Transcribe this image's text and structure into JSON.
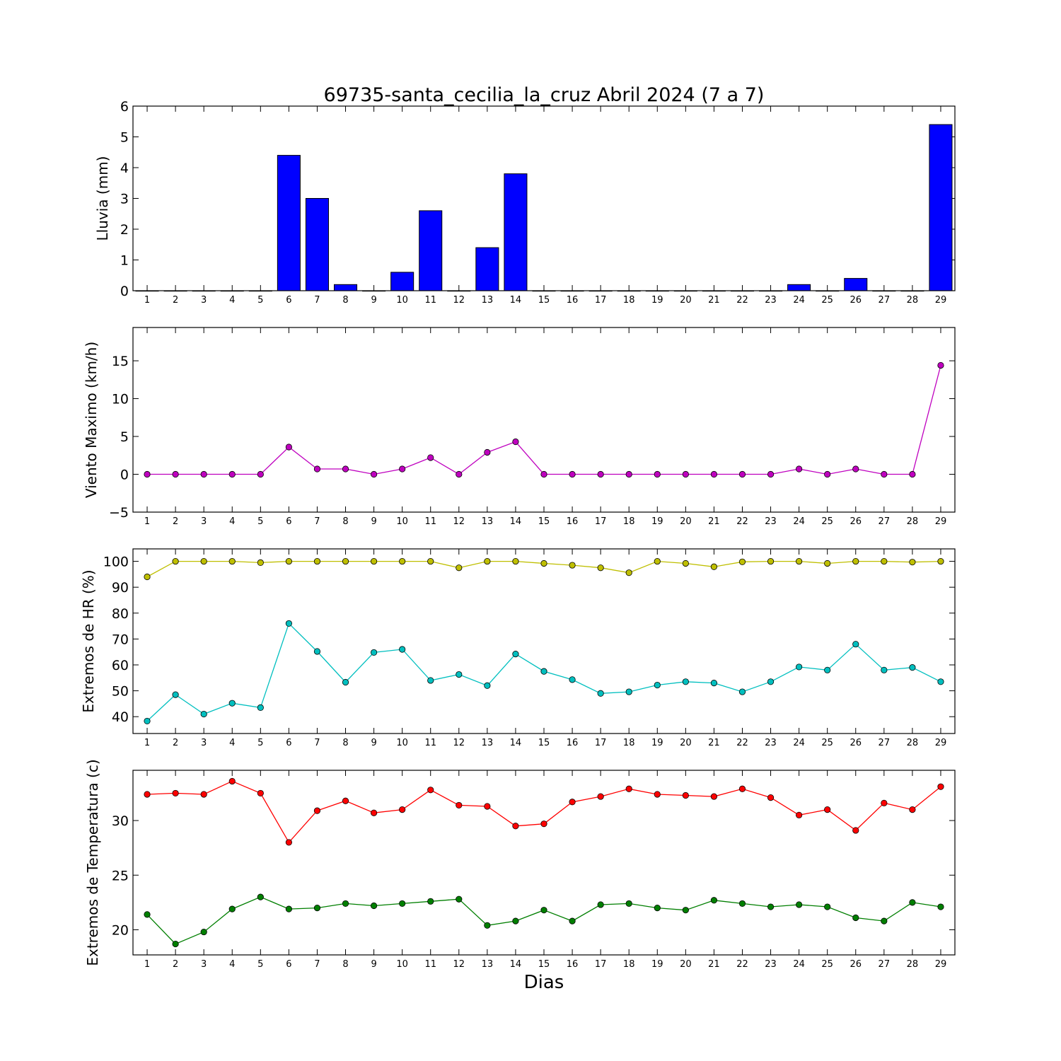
{
  "title": "69735-santa_cecilia_la_cruz Abril 2024  (7 a 7)",
  "xlabel": "Dias",
  "chart_data": [
    {
      "type": "bar",
      "ylabel": "Lluvia (mm)",
      "x": [
        1,
        2,
        3,
        4,
        5,
        6,
        7,
        8,
        9,
        10,
        11,
        12,
        13,
        14,
        15,
        16,
        17,
        18,
        19,
        20,
        21,
        22,
        23,
        24,
        25,
        26,
        27,
        28,
        29
      ],
      "ylim": [
        0,
        6
      ],
      "yticks": [
        0,
        1,
        2,
        3,
        4,
        5,
        6
      ],
      "series": [
        {
          "color": "#0000ff",
          "values": [
            0,
            0,
            0,
            0,
            0,
            4.4,
            3.0,
            0.2,
            0,
            0.6,
            2.6,
            0,
            1.4,
            3.8,
            0,
            0,
            0,
            0,
            0,
            0,
            0,
            0,
            0,
            0.2,
            0,
            0.4,
            0,
            0,
            5.4
          ]
        }
      ]
    },
    {
      "type": "line",
      "ylabel": "Viento Maximo (km/h)",
      "x": [
        1,
        2,
        3,
        4,
        5,
        6,
        7,
        8,
        9,
        10,
        11,
        12,
        13,
        14,
        15,
        16,
        17,
        18,
        19,
        20,
        21,
        22,
        23,
        24,
        25,
        26,
        27,
        28,
        29
      ],
      "ylim": [
        -5,
        19.4
      ],
      "yticks": [
        -5,
        0,
        5,
        10,
        15
      ],
      "ytick_labels": [
        "−5",
        "0",
        "5",
        "10",
        "15"
      ],
      "series": [
        {
          "color": "#bf00bf",
          "values": [
            0,
            0,
            0,
            0,
            0,
            3.6,
            0.7,
            0.7,
            0,
            0.7,
            2.2,
            0,
            2.9,
            4.3,
            0,
            0,
            0,
            0,
            0,
            0,
            0,
            0,
            0,
            0.7,
            0,
            0.7,
            0,
            0,
            14.4
          ]
        }
      ]
    },
    {
      "type": "line",
      "ylabel": "Extremos de HR (%)",
      "x": [
        1,
        2,
        3,
        4,
        5,
        6,
        7,
        8,
        9,
        10,
        11,
        12,
        13,
        14,
        15,
        16,
        17,
        18,
        19,
        20,
        21,
        22,
        23,
        24,
        25,
        26,
        27,
        28,
        29
      ],
      "ylim": [
        33.5,
        104.8
      ],
      "yticks": [
        40,
        50,
        60,
        70,
        80,
        90,
        100
      ],
      "series": [
        {
          "color": "#bfbf00",
          "values": [
            94,
            100,
            100,
            100,
            99.5,
            100,
            100,
            100,
            100,
            100,
            100,
            97.5,
            100,
            100,
            99.2,
            98.5,
            97.5,
            95.6,
            100,
            99.2,
            97.9,
            99.8,
            100,
            100,
            99.2,
            100,
            100,
            99.7,
            100
          ]
        },
        {
          "color": "#00bfbf",
          "values": [
            38.3,
            48.5,
            41.0,
            45.2,
            43.5,
            76.0,
            65.2,
            53.3,
            64.8,
            66.0,
            54.0,
            56.3,
            52.0,
            64.2,
            57.5,
            54.3,
            49.0,
            49.6,
            52.2,
            53.5,
            53.0,
            49.6,
            53.5,
            59.2,
            58.0,
            68.0,
            58.0,
            59.0,
            53.5
          ]
        }
      ]
    },
    {
      "type": "line",
      "ylabel": "Extremos de Temperatura (c)",
      "x": [
        1,
        2,
        3,
        4,
        5,
        6,
        7,
        8,
        9,
        10,
        11,
        12,
        13,
        14,
        15,
        16,
        17,
        18,
        19,
        20,
        21,
        22,
        23,
        24,
        25,
        26,
        27,
        28,
        29
      ],
      "ylim": [
        17.7,
        34.6
      ],
      "yticks": [
        20,
        25,
        30
      ],
      "series": [
        {
          "color": "#ff0000",
          "values": [
            32.4,
            32.5,
            32.4,
            33.6,
            32.5,
            28.0,
            30.9,
            31.8,
            30.7,
            31.0,
            32.8,
            31.4,
            31.3,
            29.5,
            29.7,
            31.7,
            32.2,
            32.9,
            32.4,
            32.3,
            32.2,
            32.9,
            32.1,
            30.5,
            31.0,
            29.1,
            31.6,
            31.0,
            33.1
          ]
        },
        {
          "color": "#007f00",
          "values": [
            21.4,
            18.7,
            19.8,
            21.9,
            23.0,
            21.9,
            22.0,
            22.4,
            22.2,
            22.4,
            22.6,
            22.8,
            20.4,
            20.8,
            21.8,
            20.8,
            22.3,
            22.4,
            22.0,
            21.8,
            22.7,
            22.4,
            22.1,
            22.3,
            22.1,
            21.1,
            20.8,
            22.5,
            22.1
          ]
        }
      ]
    }
  ]
}
